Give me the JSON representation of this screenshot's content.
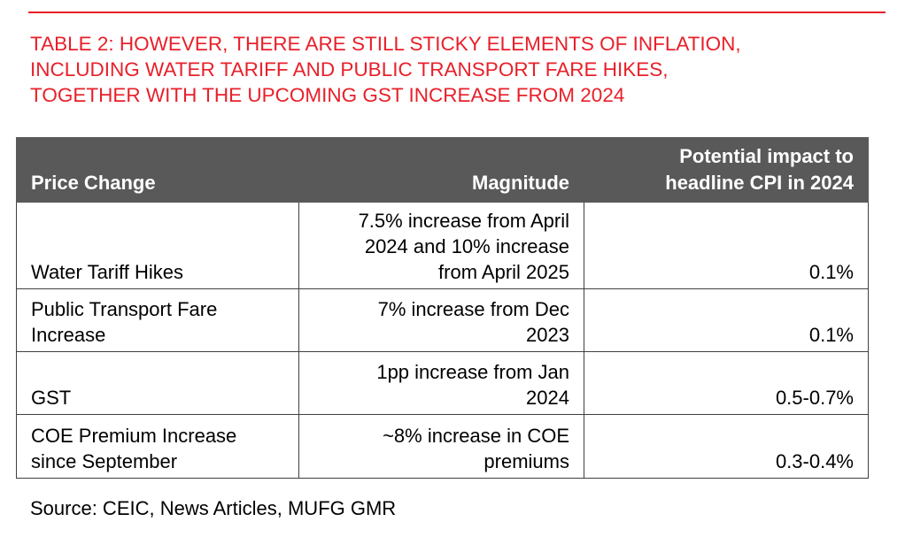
{
  "title_lines": [
    "TABLE 2: HOWEVER, THERE ARE STILL STICKY ELEMENTS OF INFLATION,",
    "INCLUDING WATER TARIFF AND PUBLIC TRANSPORT FARE HIKES,",
    "TOGETHER WITH THE UPCOMING GST INCREASE FROM 2024"
  ],
  "colors": {
    "accent_red": "#e8202a",
    "header_bg": "#595959",
    "header_text": "#ffffff"
  },
  "table": {
    "headers": {
      "price_change": "Price Change",
      "magnitude": "Magnitude",
      "impact_line1": "Potential impact to",
      "impact_line2": "headline CPI in 2024"
    },
    "rows": [
      {
        "price_change": [
          "Water Tariff Hikes"
        ],
        "magnitude": [
          "7.5% increase from April",
          "2024 and 10% increase",
          "from April 2025"
        ],
        "impact": "0.1%"
      },
      {
        "price_change": [
          "Public Transport Fare",
          "Increase"
        ],
        "magnitude": [
          "7% increase from Dec",
          "2023"
        ],
        "impact": "0.1%"
      },
      {
        "price_change": [
          "GST"
        ],
        "magnitude": [
          "1pp increase from Jan",
          "2024"
        ],
        "impact": "0.5-0.7%"
      },
      {
        "price_change": [
          "COE Premium Increase",
          "since September"
        ],
        "magnitude": [
          "~8% increase in COE",
          "premiums"
        ],
        "impact": "0.3-0.4%"
      }
    ]
  },
  "source": "Source: CEIC, News Articles, MUFG GMR"
}
